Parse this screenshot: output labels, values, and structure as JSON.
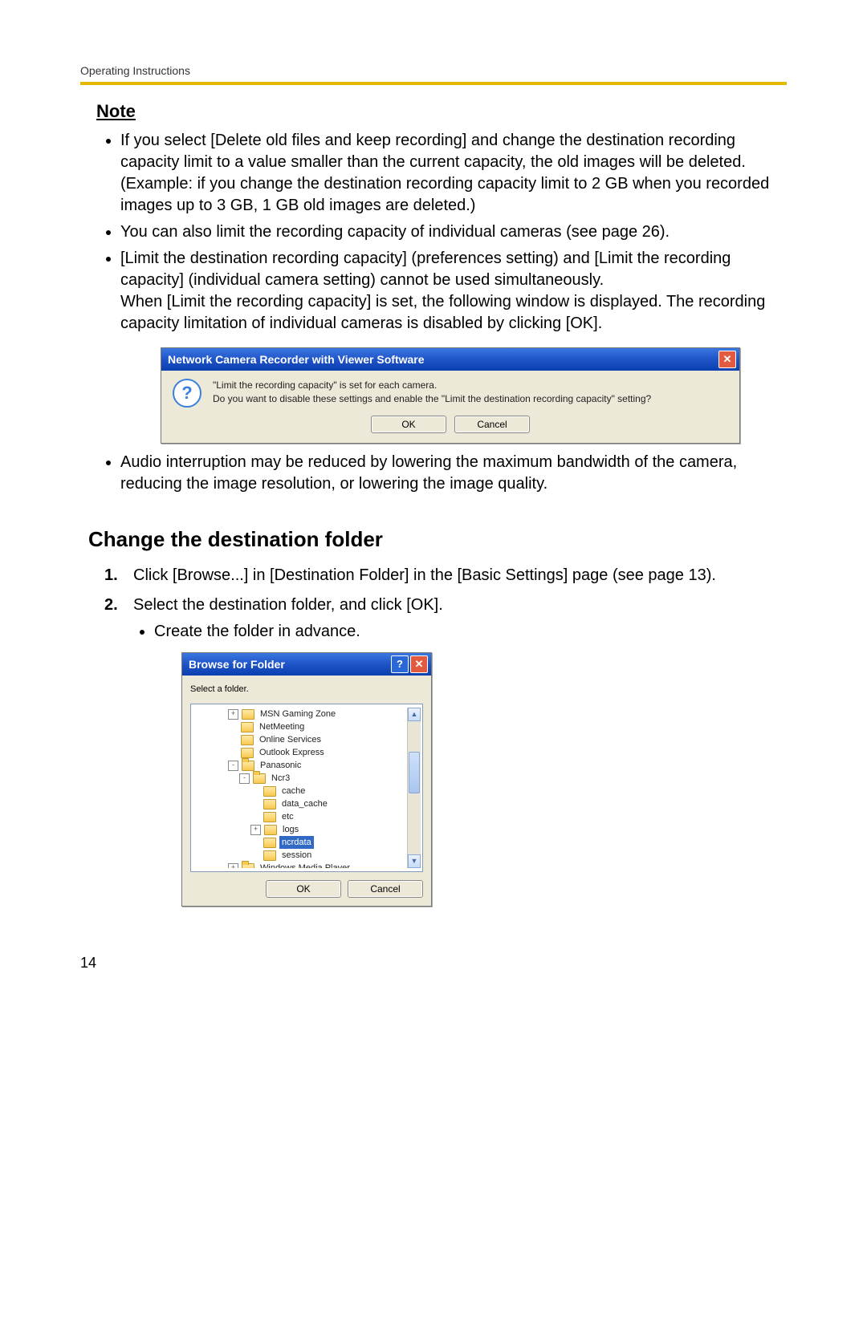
{
  "header": "Operating Instructions",
  "page_number": "14",
  "note_heading": "Note",
  "note_bullets": [
    "If you select [Delete old files and keep recording] and change the destination recording capacity limit to a value smaller than the current capacity, the old images will be deleted.\n(Example: if you change the destination recording capacity limit to 2 GB when you recorded images up to 3 GB, 1 GB old images are deleted.)",
    "You can also limit the recording capacity of individual cameras (see page 26).",
    "[Limit the destination recording capacity] (preferences setting) and [Limit the recording capacity] (individual camera setting) cannot be used simultaneously.\nWhen [Limit the recording capacity] is set, the following window is displayed. The recording capacity limitation of individual cameras is disabled by clicking [OK].",
    "Audio interruption may be reduced by lowering the maximum bandwidth of the camera, reducing the image resolution, or lowering the image quality."
  ],
  "dialog1": {
    "title": "Network Camera Recorder with Viewer Software",
    "line1": "\"Limit the recording capacity\" is set for each camera.",
    "line2": "Do you want to disable these settings and enable the \"Limit the destination recording capacity\" setting?",
    "ok": "OK",
    "cancel": "Cancel"
  },
  "section_heading": "Change the destination folder",
  "steps": {
    "s1": "Click [Browse...] in [Destination Folder] in the [Basic Settings] page (see page 13).",
    "s2": "Select the destination folder, and click [OK].",
    "s2_sub": "Create the folder in advance."
  },
  "dialog2": {
    "title": "Browse for Folder",
    "prompt": "Select a folder.",
    "ok": "OK",
    "cancel": "Cancel",
    "nodes": {
      "n1": "MSN Gaming Zone",
      "n2": "NetMeeting",
      "n3": "Online Services",
      "n4": "Outlook Express",
      "n5": "Panasonic",
      "n6": "Ncr3",
      "n7": "cache",
      "n8": "data_cache",
      "n9": "etc",
      "n10": "logs",
      "n11": "ncrdata",
      "n12": "session",
      "n13": "Windows Media Player"
    }
  },
  "colors": {
    "accent_rule": "#e6b800",
    "titlebar_grad_top": "#3b77e0",
    "titlebar_grad_bottom": "#0a3fb0",
    "dialog_body": "#ece9d8",
    "selection": "#316ac5"
  }
}
